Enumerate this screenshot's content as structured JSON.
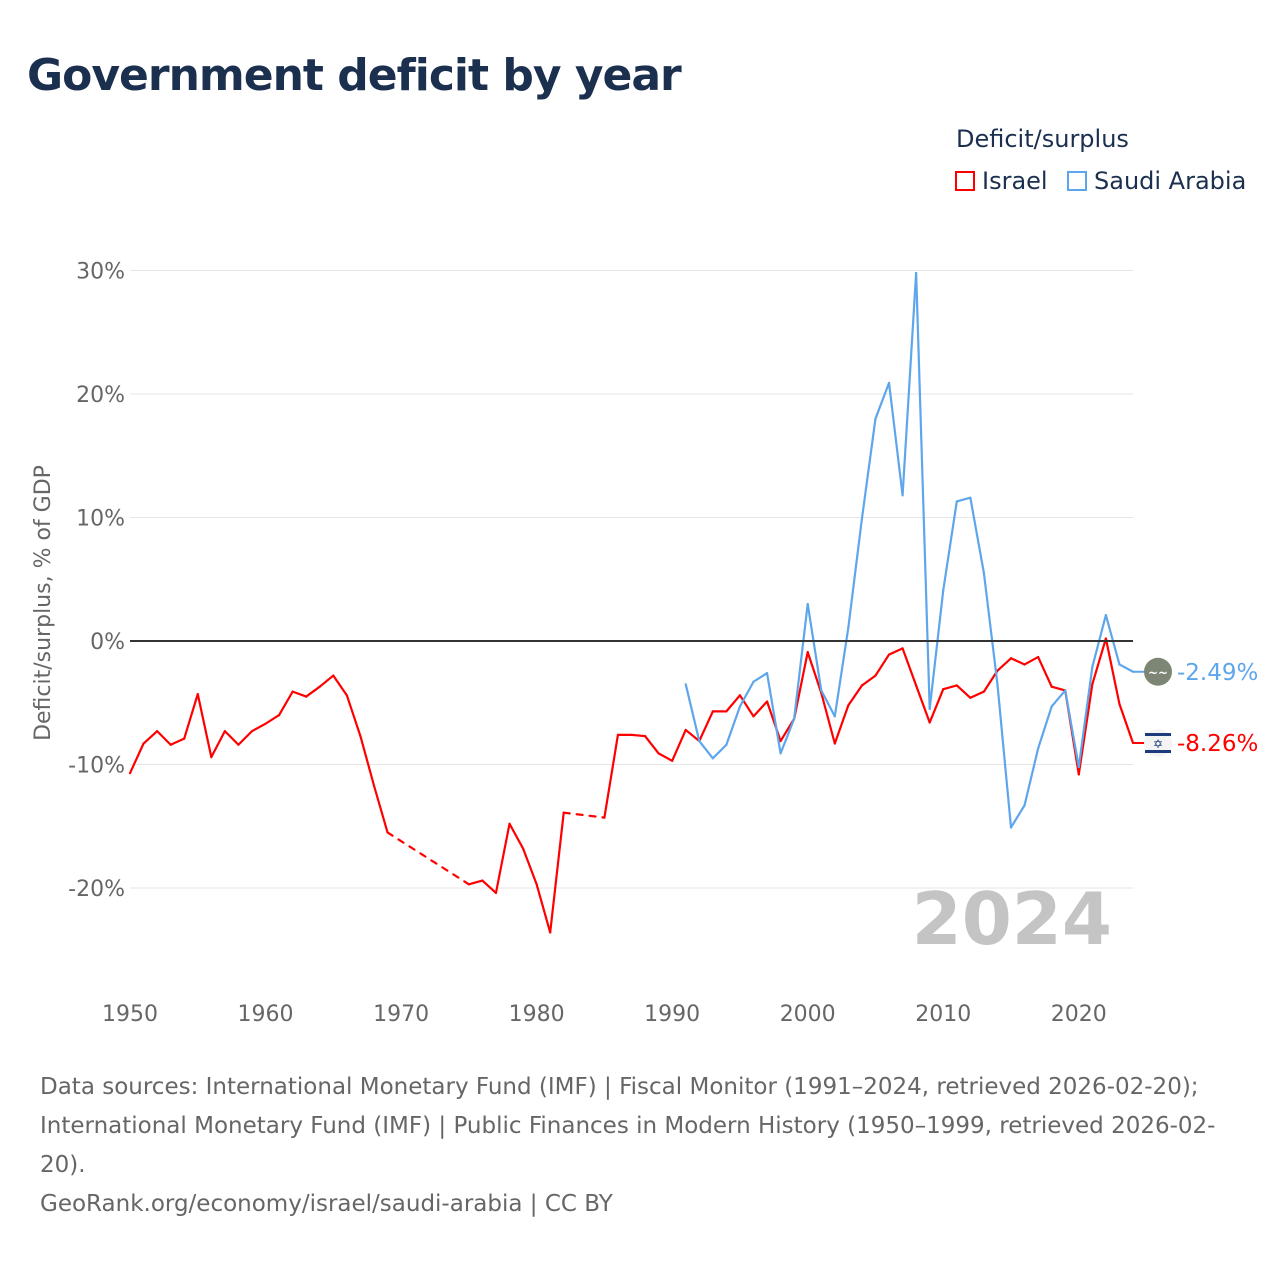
{
  "title": "Government deficit by year",
  "legend": {
    "title": "Deficit/surplus",
    "items": [
      {
        "label": "Israel",
        "color": "#ff0000"
      },
      {
        "label": "Saudi Arabia",
        "color": "#5ea6ec"
      }
    ]
  },
  "year_watermark": "2024",
  "icons": {
    "saudi": "saudi-arabia-flag-icon",
    "israel": "israel-flag-icon"
  },
  "footer": {
    "sources": "Data sources: International Monetary Fund (IMF) | Fiscal Monitor (1991–2024, retrieved 2026-02-20); International Monetary Fund (IMF) | Public Finances in Modern History (1950–1999, retrieved 2026-02-20).",
    "credit": "GeoRank.org/economy/israel/saudi-arabia | CC BY"
  },
  "chart_data": {
    "type": "line",
    "title": "Government deficit by year",
    "xlabel": "",
    "ylabel": "Deficit/surplus, % of GDP",
    "xlim": [
      1950,
      2024
    ],
    "ylim": [
      -25,
      30
    ],
    "xticks": [
      1950,
      1960,
      1970,
      1980,
      1990,
      2000,
      2010,
      2020
    ],
    "yticks": [
      30,
      20,
      10,
      0,
      -10,
      -20
    ],
    "ytick_labels": [
      "30%",
      "20%",
      "10%",
      "0%",
      "-10%",
      "-20%"
    ],
    "grid": true,
    "legend_position": "top-right",
    "series": [
      {
        "name": "Israel",
        "color": "#ff0000",
        "end_label": "-8.26%",
        "x": [
          1950,
          1951,
          1952,
          1953,
          1954,
          1955,
          1956,
          1957,
          1958,
          1959,
          1960,
          1961,
          1962,
          1963,
          1964,
          1965,
          1966,
          1967,
          1968,
          1969,
          1975,
          1976,
          1977,
          1978,
          1979,
          1980,
          1981,
          1982,
          1985,
          1986,
          1987,
          1988,
          1989,
          1990,
          1991,
          1992,
          1993,
          1994,
          1995,
          1996,
          1997,
          1998,
          1999,
          2000,
          2001,
          2002,
          2003,
          2004,
          2005,
          2006,
          2007,
          2008,
          2009,
          2010,
          2011,
          2012,
          2013,
          2014,
          2015,
          2016,
          2017,
          2018,
          2019,
          2020,
          2021,
          2022,
          2023,
          2024
        ],
        "y": [
          -10.7,
          -8.3,
          -7.3,
          -8.4,
          -7.9,
          -4.3,
          -9.4,
          -7.3,
          -8.4,
          -7.3,
          -6.7,
          -6.0,
          -4.1,
          -4.5,
          -3.7,
          -2.8,
          -4.4,
          -7.7,
          -11.7,
          -15.5,
          -19.7,
          -19.4,
          -20.4,
          -14.8,
          -16.8,
          -19.7,
          -23.6,
          -13.9,
          -14.3,
          -7.6,
          -7.6,
          -7.7,
          -9.1,
          -9.7,
          -7.2,
          -8.1,
          -5.7,
          -5.7,
          -4.4,
          -6.1,
          -4.9,
          -8.1,
          -6.3,
          -0.9,
          -4.2,
          -8.3,
          -5.2,
          -3.6,
          -2.8,
          -1.1,
          -0.6,
          -3.6,
          -6.6,
          -3.9,
          -3.6,
          -4.6,
          -4.1,
          -2.4,
          -1.4,
          -1.9,
          -1.3,
          -3.7,
          -4.0,
          -10.8,
          -3.5,
          0.2,
          -5.1,
          -8.26
        ]
      },
      {
        "name": "Saudi Arabia",
        "color": "#5ea6ec",
        "end_label": "-2.49%",
        "x": [
          1991,
          1992,
          1993,
          1994,
          1995,
          1996,
          1997,
          1998,
          1999,
          2000,
          2001,
          2002,
          2003,
          2004,
          2005,
          2006,
          2007,
          2008,
          2009,
          2010,
          2011,
          2012,
          2013,
          2014,
          2015,
          2016,
          2017,
          2018,
          2019,
          2020,
          2021,
          2022,
          2023,
          2024
        ],
        "y": [
          -3.5,
          -8.1,
          -9.5,
          -8.4,
          -5.3,
          -3.3,
          -2.6,
          -9.1,
          -6.3,
          3.0,
          -4.0,
          -6.1,
          1.1,
          9.9,
          18.0,
          20.9,
          11.8,
          29.8,
          -5.5,
          4.1,
          11.3,
          11.6,
          5.5,
          -3.5,
          -15.1,
          -13.3,
          -8.7,
          -5.3,
          -4.0,
          -10.2,
          -2.1,
          2.1,
          -1.9,
          -2.49
        ]
      }
    ]
  }
}
